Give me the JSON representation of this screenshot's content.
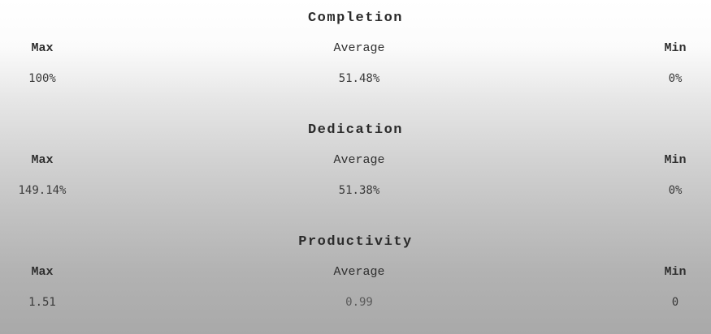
{
  "sections": [
    {
      "title": "Completion",
      "max_label": "Max",
      "avg_label": "Average",
      "min_label": "Min",
      "max_value": "100%",
      "avg_value": "51.48%",
      "min_value": "0%"
    },
    {
      "title": "Dedication",
      "max_label": "Max",
      "avg_label": "Average",
      "min_label": "Min",
      "max_value": "149.14%",
      "avg_value": "51.38%",
      "min_value": "0%"
    },
    {
      "title": "Productivity",
      "max_label": "Max",
      "avg_label": "Average",
      "min_label": "Min",
      "max_value": "1.51",
      "avg_value": "0.99",
      "min_value": "0"
    }
  ],
  "colors": {
    "background_top": "#ffffff",
    "background_bottom": "#a9a9a9",
    "text": "#333333"
  }
}
